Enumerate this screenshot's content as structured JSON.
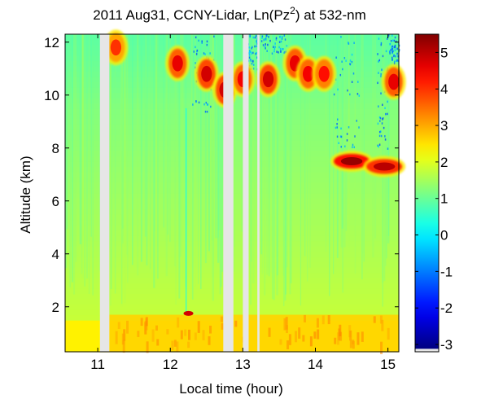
{
  "chart_data": {
    "type": "heatmap",
    "title_main": "2011 Aug31, CCNY-Lidar, Ln(Pz",
    "title_sup": "2",
    "title_tail": ") at 532-nm",
    "xlabel": "Local time (hour)",
    "ylabel": "Altitude (km)",
    "xlim": [
      10.55,
      15.15
    ],
    "ylim": [
      0.3,
      12.3
    ],
    "x_ticks": [
      11,
      12,
      13,
      14,
      15
    ],
    "x_tick_labels": [
      "11",
      "12",
      "13",
      "14",
      "15"
    ],
    "y_ticks": [
      2,
      4,
      6,
      8,
      10,
      12
    ],
    "y_tick_labels": [
      "2",
      "4",
      "6",
      "8",
      "10",
      "12"
    ],
    "colorbar": {
      "colormap": "jet",
      "range": [
        -3.2,
        5.5
      ],
      "ticks": [
        -3,
        -2,
        -1,
        0,
        1,
        2,
        3,
        4,
        5
      ],
      "tick_labels": [
        "-3",
        "-2",
        "-1",
        "0",
        "1",
        "2",
        "3",
        "4",
        "5"
      ],
      "nodata_color": "#e6e6e6"
    },
    "data_gaps_hours": [
      [
        11.03,
        11.16
      ],
      [
        12.73,
        12.87
      ],
      [
        13.0,
        13.08
      ],
      [
        13.2,
        13.23
      ]
    ],
    "features": [
      {
        "kind": "boundary_layer",
        "t_start": 11.16,
        "t_end": 15.15,
        "top_km": 1.7,
        "value": 2.6
      },
      {
        "kind": "cirrus",
        "t": 11.25,
        "alt_km": 11.8,
        "value": 4.0
      },
      {
        "kind": "cirrus",
        "t": 12.1,
        "alt_km": 11.2,
        "value": 4.6
      },
      {
        "kind": "cirrus",
        "t": 12.5,
        "alt_km": 10.8,
        "value": 4.8
      },
      {
        "kind": "cirrus",
        "t": 12.75,
        "alt_km": 10.2,
        "value": 4.8
      },
      {
        "kind": "cirrus",
        "t": 13.0,
        "alt_km": 10.6,
        "value": 4.5
      },
      {
        "kind": "cirrus",
        "t": 13.35,
        "alt_km": 10.6,
        "value": 4.8
      },
      {
        "kind": "cirrus",
        "t": 13.72,
        "alt_km": 11.2,
        "value": 4.6
      },
      {
        "kind": "cirrus",
        "t": 13.9,
        "alt_km": 10.8,
        "value": 4.5
      },
      {
        "kind": "cirrus",
        "t": 14.12,
        "alt_km": 10.8,
        "value": 4.3
      },
      {
        "kind": "cloud",
        "t": 14.5,
        "alt_km": 7.5,
        "value": 5.3
      },
      {
        "kind": "cloud",
        "t": 14.95,
        "alt_km": 7.3,
        "value": 5.0
      },
      {
        "kind": "cirrus",
        "t": 15.08,
        "alt_km": 10.5,
        "value": 4.6
      }
    ]
  }
}
